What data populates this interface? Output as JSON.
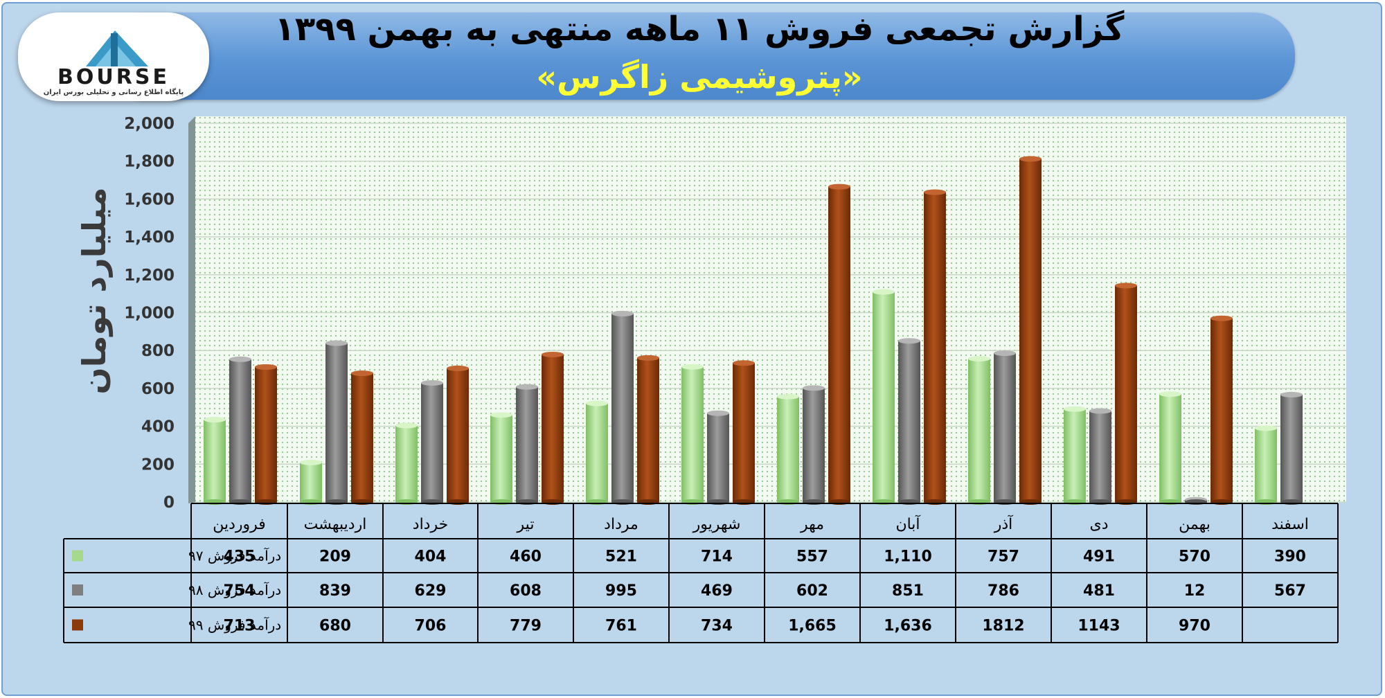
{
  "header": {
    "title": "گزارش تجمعی فروش ۱۱ ماهه منتهی به بهمن ۱۳۹۹",
    "subtitle": "«پتروشیمی زاگرس»"
  },
  "logo": {
    "wordmark": "BOURSE",
    "caption": "پایگاه اطلاع رسانی و تحلیلی بورس ایران"
  },
  "chart_data": {
    "type": "bar",
    "ylabel": "میلیارد تومان",
    "ylim": [
      0,
      2000
    ],
    "yticks": [
      "0",
      "200",
      "400",
      "600",
      "800",
      "1,000",
      "1,200",
      "1,400",
      "1,600",
      "1,800",
      "2,000"
    ],
    "categories": [
      "فروردین",
      "اردیبهشت",
      "خرداد",
      "تیر",
      "مرداد",
      "شهریور",
      "مهر",
      "آبان",
      "آذر",
      "دی",
      "بهمن",
      "اسفند"
    ],
    "series": [
      {
        "name": "درآمد فروش ۹۷",
        "color": "#a6d98c",
        "values": [
          435,
          209,
          404,
          460,
          521,
          714,
          557,
          1110,
          757,
          491,
          570,
          390
        ],
        "labels": [
          "435",
          "209",
          "404",
          "460",
          "521",
          "714",
          "557",
          "1,110",
          "757",
          "491",
          "570",
          "390"
        ]
      },
      {
        "name": "درآمد فروش ۹۸",
        "color": "#7f7f7f",
        "values": [
          754,
          839,
          629,
          608,
          995,
          469,
          602,
          851,
          786,
          481,
          12,
          567
        ],
        "labels": [
          "754",
          "839",
          "629",
          "608",
          "995",
          "469",
          "602",
          "851",
          "786",
          "481",
          "12",
          "567"
        ]
      },
      {
        "name": "درآمد فروش ۹۹",
        "color": "#8b3a0c",
        "values": [
          713,
          680,
          706,
          779,
          761,
          734,
          1665,
          1636,
          1812,
          1143,
          970,
          null
        ],
        "labels": [
          "713",
          "680",
          "706",
          "779",
          "761",
          "734",
          "1,665",
          "1,636",
          "1812",
          "1143",
          "970",
          ""
        ]
      }
    ]
  }
}
